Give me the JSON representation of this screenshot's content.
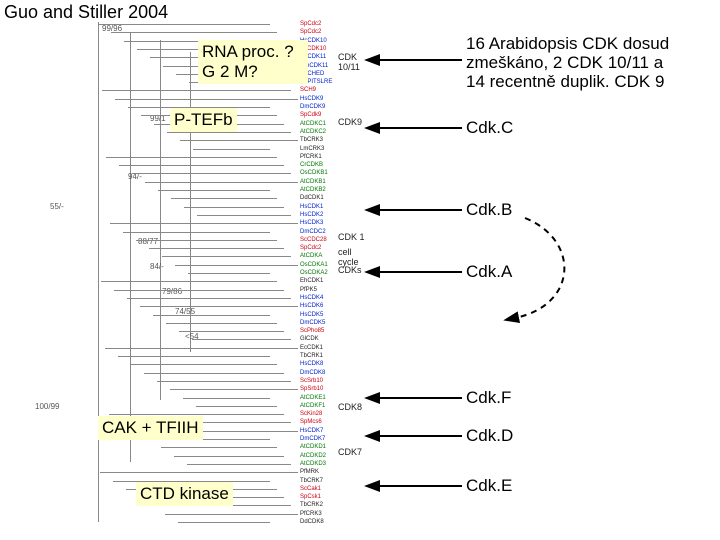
{
  "title": "Guo and Stiller 2004",
  "left_labels": {
    "rna_proc": "RNA proc. ?\nG 2 M?",
    "ptefb": "P-TEFb",
    "cak_tfiih": "CAK + TFIIH",
    "ctd_kinase": "CTD kinase"
  },
  "right_annot": {
    "top_note": "16 Arabidopsis CDK dosud\nzmeškáno, 2 CDK 10/11 a\n14 recentně duplik. CDK 9",
    "cdkc": "Cdk.C",
    "cdkb": "Cdk.B",
    "cdka": "Cdk.A",
    "cdkf": "Cdk.F",
    "cdkd": "Cdk.D",
    "cdke": "Cdk.E"
  },
  "clade_labels": {
    "cdk1011": "CDK 10/11",
    "cdk9": "CDK9",
    "cdk1": "CDK 1",
    "cell_cycle": "cell\ncycle",
    "cdks": "CDKs",
    "cdk8": "CDK8",
    "cdk7": "CDK7"
  },
  "bootstraps": [
    "99/96",
    "55/-",
    "94/-",
    "88/77",
    "84/-",
    "79/86",
    "74/55",
    "99/1",
    "100/99",
    "<54",
    "100/99"
  ],
  "tips": [
    {
      "c": "tip-red",
      "t": "SpCdc2"
    },
    {
      "c": "tip-red",
      "t": "SpCdc2"
    },
    {
      "c": "tip-blue",
      "t": "HsCDK10"
    },
    {
      "c": "tip-red",
      "t": "ScCDK10"
    },
    {
      "c": "tip-blue",
      "t": "HsCDK11"
    },
    {
      "c": "tip-blue",
      "t": "DmCDK11"
    },
    {
      "c": "tip-blue",
      "t": "HsCHED"
    },
    {
      "c": "tip-blue",
      "t": "HsPITSLRE"
    },
    {
      "c": "tip-red",
      "t": "SCH9"
    },
    {
      "c": "tip-blue",
      "t": "HsCDK9"
    },
    {
      "c": "tip-blue",
      "t": "DmCDK9"
    },
    {
      "c": "tip-red",
      "t": "SpCdk9"
    },
    {
      "c": "tip-green",
      "t": "AtCDKC1"
    },
    {
      "c": "tip-green",
      "t": "AtCDKC2"
    },
    {
      "c": "tip-black",
      "t": "TbCRK3"
    },
    {
      "c": "tip-black",
      "t": "LmCRK3"
    },
    {
      "c": "tip-black",
      "t": "PfCRK1"
    },
    {
      "c": "tip-green",
      "t": "CrCDKB"
    },
    {
      "c": "tip-green",
      "t": "OsCDKB1"
    },
    {
      "c": "tip-green",
      "t": "AtCDKB1"
    },
    {
      "c": "tip-green",
      "t": "AtCDKB2"
    },
    {
      "c": "tip-black",
      "t": "DdCDK1"
    },
    {
      "c": "tip-blue",
      "t": "HsCDK1"
    },
    {
      "c": "tip-blue",
      "t": "HsCDK2"
    },
    {
      "c": "tip-blue",
      "t": "HsCDK3"
    },
    {
      "c": "tip-blue",
      "t": "DmCDC2"
    },
    {
      "c": "tip-red",
      "t": "ScCDC28"
    },
    {
      "c": "tip-red",
      "t": "SpCdc2"
    },
    {
      "c": "tip-green",
      "t": "AtCDKA"
    },
    {
      "c": "tip-green",
      "t": "OsCDKA1"
    },
    {
      "c": "tip-green",
      "t": "OsCDKA2"
    },
    {
      "c": "tip-black",
      "t": "EhCDK1"
    },
    {
      "c": "tip-black",
      "t": "PfPK5"
    },
    {
      "c": "tip-blue",
      "t": "HsCDK4"
    },
    {
      "c": "tip-blue",
      "t": "HsCDK6"
    },
    {
      "c": "tip-blue",
      "t": "HsCDK5"
    },
    {
      "c": "tip-blue",
      "t": "DmCDK5"
    },
    {
      "c": "tip-red",
      "t": "ScPho85"
    },
    {
      "c": "tip-black",
      "t": "GlCDK"
    },
    {
      "c": "tip-black",
      "t": "EcCDK1"
    },
    {
      "c": "tip-black",
      "t": "TbCRK1"
    },
    {
      "c": "tip-blue",
      "t": "HsCDK8"
    },
    {
      "c": "tip-blue",
      "t": "DmCDK8"
    },
    {
      "c": "tip-red",
      "t": "ScSrb10"
    },
    {
      "c": "tip-red",
      "t": "SpSrb10"
    },
    {
      "c": "tip-green",
      "t": "AtCDKE1"
    },
    {
      "c": "tip-green",
      "t": "AtCDKF1"
    },
    {
      "c": "tip-red",
      "t": "ScKin28"
    },
    {
      "c": "tip-red",
      "t": "SpMcs6"
    },
    {
      "c": "tip-blue",
      "t": "HsCDK7"
    },
    {
      "c": "tip-blue",
      "t": "DmCDK7"
    },
    {
      "c": "tip-green",
      "t": "AtCDKD1"
    },
    {
      "c": "tip-green",
      "t": "AtCDKD2"
    },
    {
      "c": "tip-green",
      "t": "AtCDKD3"
    },
    {
      "c": "tip-black",
      "t": "PfMRK"
    },
    {
      "c": "tip-black",
      "t": "TbCRK7"
    },
    {
      "c": "tip-red",
      "t": "ScCak1"
    },
    {
      "c": "tip-red",
      "t": "SpCsk1"
    },
    {
      "c": "tip-black",
      "t": "TbCRK2"
    },
    {
      "c": "tip-black",
      "t": "PfCRK3"
    },
    {
      "c": "tip-black",
      "t": "DdCDK8"
    }
  ],
  "colors": {
    "arrow": "#000000",
    "dash": "#000000",
    "box_bg": "#ffffcc",
    "tip_red": "#cc0011",
    "tip_blue": "#0022cc",
    "tip_green": "#007700"
  }
}
